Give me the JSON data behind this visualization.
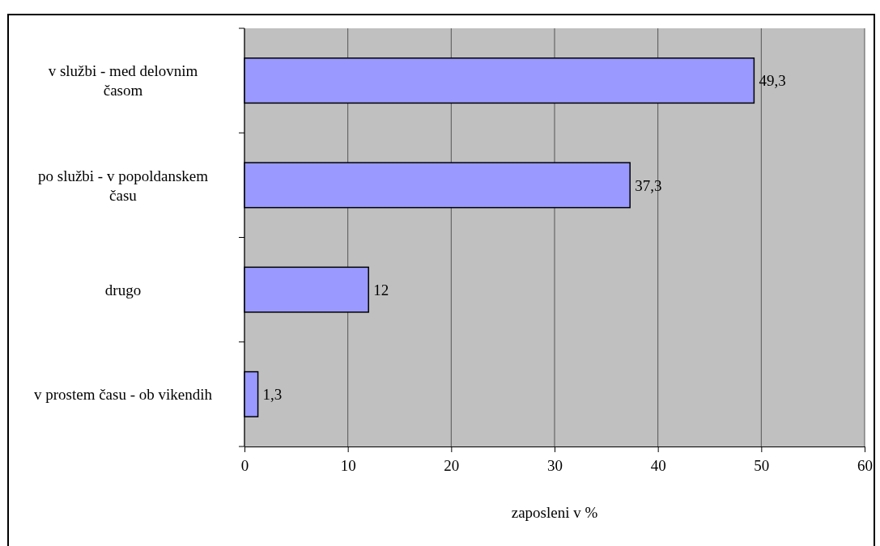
{
  "chart_data": {
    "type": "bar",
    "orientation": "horizontal",
    "xlabel": "zaposleni v %",
    "categories": [
      "v službi - med delovnim časom",
      "po službi - v popoldanskem času",
      "drugo",
      "v prostem času - ob vikendih"
    ],
    "values": [
      49.3,
      37.3,
      12,
      1.3
    ],
    "value_labels": [
      "49,3",
      "37,3",
      "12",
      "1,3"
    ],
    "color": "#9999ff",
    "xlim": [
      0,
      60
    ],
    "xticks": [
      0,
      10,
      20,
      30,
      40,
      50,
      60
    ],
    "grid": "x"
  }
}
